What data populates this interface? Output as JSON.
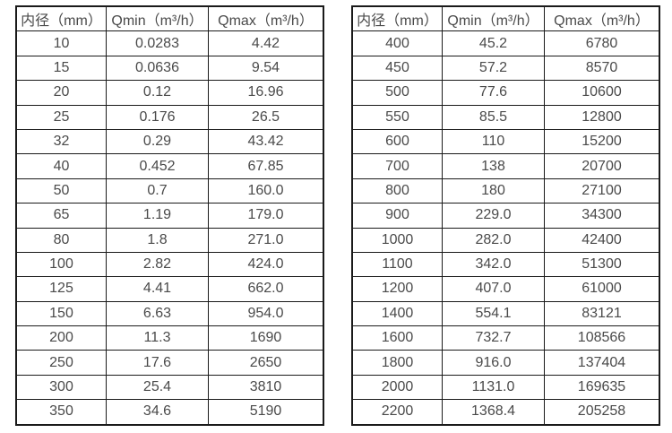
{
  "page": {
    "background_color": "#ffffff",
    "text_color": "#4a4a4a",
    "border_color": "#1a1a1a"
  },
  "tables": [
    {
      "id": "flow-table-dn10-350",
      "headers": [
        "内径（mm）",
        "Qmin（m³/h）",
        "Qmax（m³/h）"
      ],
      "rows": [
        [
          "10",
          "0.0283",
          "4.42"
        ],
        [
          "15",
          "0.0636",
          "9.54"
        ],
        [
          "20",
          "0.12",
          "16.96"
        ],
        [
          "25",
          "0.176",
          "26.5"
        ],
        [
          "32",
          "0.29",
          "43.42"
        ],
        [
          "40",
          "0.452",
          "67.85"
        ],
        [
          "50",
          "0.7",
          "160.0"
        ],
        [
          "65",
          "1.19",
          "179.0"
        ],
        [
          "80",
          "1.8",
          "271.0"
        ],
        [
          "100",
          "2.82",
          "424.0"
        ],
        [
          "125",
          "4.41",
          "662.0"
        ],
        [
          "150",
          "6.63",
          "954.0"
        ],
        [
          "200",
          "11.3",
          "1690"
        ],
        [
          "250",
          "17.6",
          "2650"
        ],
        [
          "300",
          "25.4",
          "3810"
        ],
        [
          "350",
          "34.6",
          "5190"
        ]
      ]
    },
    {
      "id": "flow-table-dn400-2200",
      "headers": [
        "内径（mm）",
        "Qmin（m³/h）",
        "Qmax（m³/h）"
      ],
      "rows": [
        [
          "400",
          "45.2",
          "6780"
        ],
        [
          "450",
          "57.2",
          "8570"
        ],
        [
          "500",
          "77.6",
          "10600"
        ],
        [
          "550",
          "85.5",
          "12800"
        ],
        [
          "600",
          "110",
          "15200"
        ],
        [
          "700",
          "138",
          "20700"
        ],
        [
          "800",
          "180",
          "27100"
        ],
        [
          "900",
          "229.0",
          "34300"
        ],
        [
          "1000",
          "282.0",
          "42400"
        ],
        [
          "1100",
          "342.0",
          "51300"
        ],
        [
          "1200",
          "407.0",
          "61000"
        ],
        [
          "1400",
          "554.1",
          "83121"
        ],
        [
          "1600",
          "732.7",
          "108566"
        ],
        [
          "1800",
          "916.0",
          "137404"
        ],
        [
          "2000",
          "1131.0",
          "169635"
        ],
        [
          "2200",
          "1368.4",
          "205258"
        ]
      ]
    }
  ]
}
